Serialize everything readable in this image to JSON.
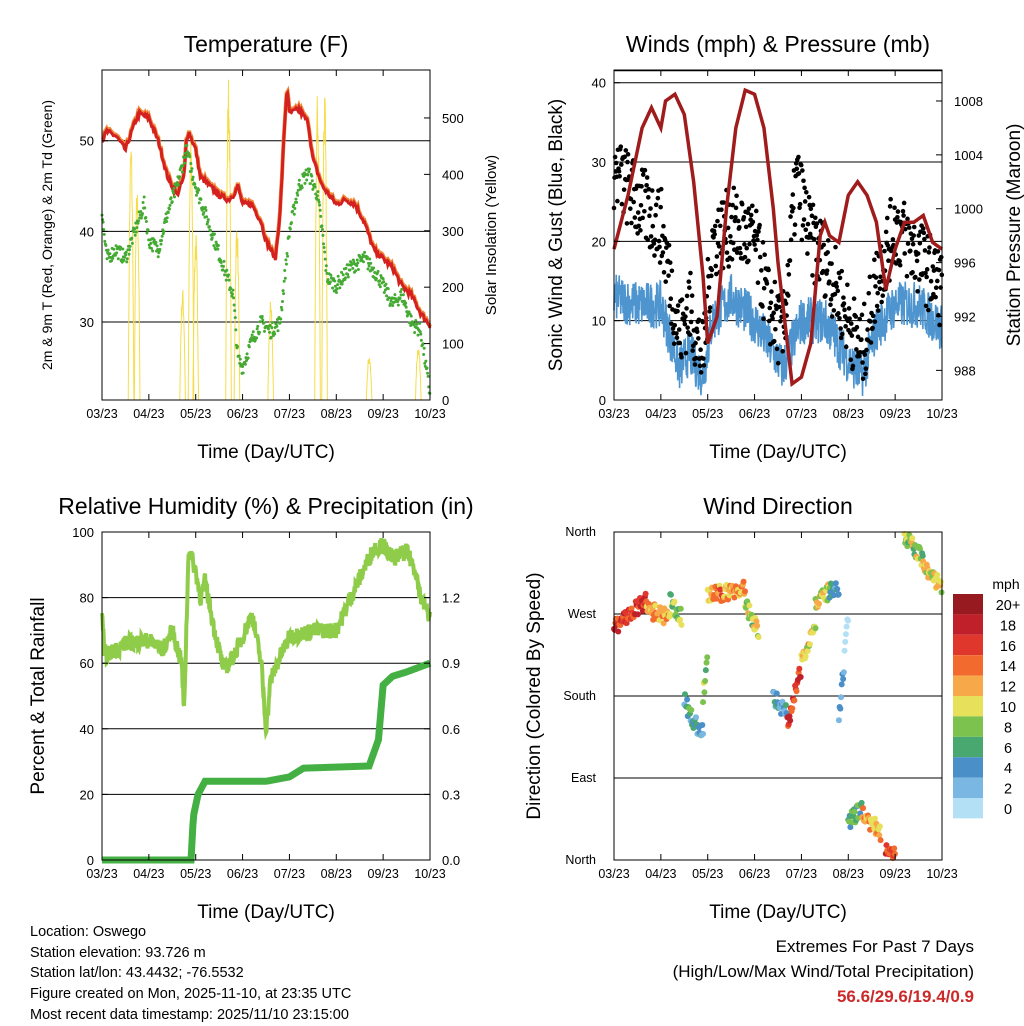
{
  "x_ticks": [
    "03/23",
    "04/23",
    "05/23",
    "06/23",
    "07/23",
    "08/23",
    "09/23",
    "10/23"
  ],
  "chart_data": [
    {
      "type": "line",
      "title": "Temperature (F)",
      "xlabel": "Time (Day/UTC)",
      "ylabel": "2m & 9m T (Red, Orange) & 2m Td (Green)",
      "ylabel_right": "Solar Insolation (Yellow)",
      "ylim": [
        21.4,
        57.8
      ],
      "ylim_right": [
        0,
        585
      ],
      "yticks": [
        30,
        40,
        50
      ],
      "yticks_right": [
        0,
        100,
        200,
        300,
        400,
        500
      ],
      "grid": true,
      "series": [
        {
          "name": "2m T",
          "color": "#d42020",
          "x": [
            0,
            0.1,
            0.3,
            0.5,
            0.7,
            0.8,
            1.0,
            1.2,
            1.4,
            1.6,
            1.75,
            1.8,
            1.85,
            2.0,
            2.1,
            2.3,
            2.5,
            2.7,
            2.8,
            2.9,
            3.0,
            3.2,
            3.4,
            3.5,
            3.6,
            3.7,
            3.8,
            3.9,
            3.95,
            4.0,
            4.2,
            4.4,
            4.5,
            4.7,
            5.0,
            5.2,
            5.4,
            5.6,
            5.8,
            6.0,
            6.2,
            6.4,
            6.6,
            6.8,
            7.0
          ],
          "values": [
            50,
            51,
            50.5,
            49,
            52,
            53,
            52.5,
            50,
            46,
            44,
            46,
            50,
            51,
            49,
            46,
            45,
            44,
            43.5,
            44,
            45,
            43,
            43,
            41,
            39,
            38,
            37,
            42,
            52,
            56,
            53,
            53.5,
            52,
            48,
            45,
            43,
            43.5,
            43,
            41,
            38,
            37,
            36,
            34,
            33,
            31,
            29.6
          ]
        },
        {
          "name": "2m Td",
          "color": "#44aa33",
          "x": [
            0,
            0.1,
            0.3,
            0.5,
            0.7,
            0.9,
            1.0,
            1.2,
            1.4,
            1.6,
            1.8,
            1.9,
            2.0,
            2.2,
            2.4,
            2.6,
            2.8,
            2.9,
            3.0,
            3.2,
            3.4,
            3.6,
            3.8,
            3.9,
            4.0,
            4.2,
            4.4,
            4.6,
            4.7,
            4.8,
            5.0,
            5.3,
            5.6,
            5.9,
            6.2,
            6.4,
            6.6,
            6.8,
            7.0
          ],
          "values": [
            42,
            37,
            38,
            37,
            40,
            43,
            39,
            38,
            42,
            45,
            49,
            47,
            45,
            42,
            39,
            36,
            33,
            26,
            25,
            28,
            30,
            29,
            30,
            35,
            40,
            45,
            46.5,
            44,
            40,
            35,
            34,
            36,
            37,
            35,
            32,
            33,
            30,
            29,
            22
          ]
        },
        {
          "name": "Solar Insolation",
          "color": "#f5dd4a",
          "peaks": [
            [
              0.62,
              470
            ],
            [
              0.75,
              380
            ],
            [
              1.72,
              200
            ],
            [
              1.9,
              470
            ],
            [
              2.0,
              300
            ],
            [
              2.7,
              580
            ],
            [
              2.88,
              320
            ],
            [
              3.6,
              180
            ],
            [
              4.6,
              550
            ],
            [
              4.75,
              560
            ],
            [
              5.7,
              80
            ],
            [
              6.75,
              100
            ]
          ]
        }
      ]
    },
    {
      "type": "scatter",
      "title": "Winds (mph) & Pressure (mb)",
      "xlabel": "Time (Day/UTC)",
      "ylabel": "Sonic Wind & Gust (Blue, Black)",
      "ylabel_right": "Station Pressure (Maroon)",
      "ylim": [
        0,
        41.6
      ],
      "ylim_right": [
        985.8,
        1010.3
      ],
      "yticks": [
        0,
        10,
        20,
        30,
        40
      ],
      "yticks_right": [
        988,
        992,
        996,
        1000,
        1004,
        1008
      ],
      "grid": true,
      "series": [
        {
          "name": "Sonic Wind",
          "color": "#4e95d0",
          "x": [
            0,
            0.5,
            1.0,
            1.4,
            1.6,
            1.9,
            2.1,
            2.5,
            3.0,
            3.3,
            3.6,
            4.0,
            4.5,
            5.0,
            5.3,
            5.6,
            6.0,
            6.5,
            7.0
          ],
          "values": [
            13,
            12,
            12,
            4,
            6,
            3,
            10,
            13,
            10,
            7,
            4,
            10,
            10,
            5,
            3,
            9,
            12,
            12,
            9
          ]
        },
        {
          "name": "Gust",
          "color": "#000000",
          "x": [
            0,
            0.5,
            1.0,
            1.4,
            1.6,
            1.9,
            2.1,
            2.5,
            3.0,
            3.3,
            3.6,
            3.9,
            4.2,
            4.5,
            5.0,
            5.3,
            5.6,
            6.0,
            6.5,
            7.0
          ],
          "values": [
            29,
            25,
            22,
            8,
            12,
            5,
            20,
            22,
            20,
            12,
            8,
            28,
            20,
            18,
            10,
            6,
            15,
            22,
            18,
            14
          ]
        },
        {
          "name": "Station Pressure",
          "color": "#a01c1c",
          "x": [
            0,
            0.3,
            0.6,
            0.8,
            1.0,
            1.1,
            1.3,
            1.5,
            1.7,
            1.9,
            2.0,
            2.2,
            2.4,
            2.6,
            2.8,
            3.0,
            3.2,
            3.4,
            3.5,
            3.7,
            3.8,
            4.0,
            4.2,
            4.4,
            4.5,
            4.6,
            4.8,
            5.0,
            5.2,
            5.4,
            5.6,
            5.8,
            6.0,
            6.2,
            6.4,
            6.6,
            6.8,
            7.0
          ],
          "values": [
            997,
            1001,
            1006,
            1007.5,
            1006,
            1008,
            1008.5,
            1007,
            1002,
            995,
            990,
            992,
            1000,
            1006,
            1008.8,
            1008.5,
            1006,
            1000,
            996,
            990,
            987,
            987.5,
            990,
            998,
            999,
            998,
            997.5,
            1001,
            1002,
            1001,
            999,
            994,
            997,
            999,
            999,
            999.5,
            997.5,
            997
          ]
        }
      ]
    },
    {
      "type": "line",
      "title": "Relative Humidity (%) & Precipitation (in)",
      "xlabel": "Time (Day/UTC)",
      "ylabel": "Percent & Total Rainfall",
      "ylim": [
        0,
        100
      ],
      "ylim_right": [
        0,
        1.5
      ],
      "yticks": [
        0,
        20,
        40,
        60,
        80,
        100
      ],
      "yticks_right": [
        "0.0",
        "0.3",
        "0.6",
        "0.9",
        "1.2"
      ],
      "grid": true,
      "series": [
        {
          "name": "Relative Humidity",
          "color": "#8fcc4a",
          "x": [
            0,
            0.05,
            0.5,
            1.0,
            1.3,
            1.5,
            1.7,
            1.75,
            1.85,
            2.0,
            2.1,
            2.2,
            2.4,
            2.6,
            2.8,
            3.0,
            3.2,
            3.4,
            3.5,
            3.6,
            3.8,
            4.0,
            4.5,
            5.0,
            5.5,
            5.8,
            6.0,
            6.2,
            6.5,
            6.7,
            6.8,
            7.0
          ],
          "values": [
            77,
            62,
            66,
            67,
            64,
            70,
            60,
            45,
            95,
            88,
            80,
            85,
            70,
            58,
            62,
            68,
            75,
            60,
            40,
            55,
            62,
            68,
            70,
            70,
            86,
            95,
            96,
            92,
            94,
            88,
            80,
            74
          ]
        },
        {
          "name": "Total Precipitation",
          "color": "#44b044",
          "x": [
            0,
            1.9,
            1.95,
            2.05,
            2.2,
            3.5,
            4.0,
            4.3,
            5.7,
            5.9,
            6.0,
            6.2,
            6.5,
            7.0
          ],
          "values": [
            0,
            0,
            0.2,
            0.3,
            0.36,
            0.36,
            0.38,
            0.42,
            0.43,
            0.55,
            0.8,
            0.84,
            0.86,
            0.9
          ]
        }
      ]
    },
    {
      "type": "scatter",
      "title": "Wind Direction",
      "xlabel": "Time (Day/UTC)",
      "ylabel": "Direction (Colored By Speed)",
      "ylim": [
        0,
        360
      ],
      "yticks": [
        "North",
        "East",
        "South",
        "West",
        "North"
      ],
      "legend": {
        "title": "mph",
        "labels": [
          "20+",
          "18",
          "16",
          "14",
          "12",
          "10",
          "8",
          "6",
          "4",
          "2",
          "0"
        ],
        "colors": [
          "#961a1f",
          "#c0202a",
          "#e0372d",
          "#f26a2d",
          "#f7a94a",
          "#e7e05a",
          "#7cc24f",
          "#49a86f",
          "#4a8fc7",
          "#7ab8e3",
          "#b3e0f5"
        ],
        "placement": "right"
      },
      "segments": [
        [
          0,
          0.7,
          255,
          285,
          16
        ],
        [
          0.7,
          1.2,
          275,
          265,
          12
        ],
        [
          1.2,
          1.45,
          285,
          265,
          8
        ],
        [
          1.5,
          1.72,
          175,
          150,
          5
        ],
        [
          1.72,
          1.9,
          150,
          140,
          4
        ],
        [
          1.9,
          2.0,
          180,
          220,
          8
        ],
        [
          2.0,
          2.8,
          290,
          298,
          13
        ],
        [
          2.8,
          3.1,
          280,
          250,
          9
        ],
        [
          3.4,
          3.7,
          180,
          160,
          4
        ],
        [
          3.7,
          4.0,
          150,
          210,
          15
        ],
        [
          4.0,
          4.3,
          220,
          260,
          11
        ],
        [
          4.3,
          4.6,
          280,
          295,
          10
        ],
        [
          4.6,
          4.8,
          295,
          295,
          4
        ],
        [
          4.8,
          5.0,
          150,
          270,
          2
        ],
        [
          5.0,
          5.3,
          40,
          60,
          7
        ],
        [
          5.3,
          5.7,
          50,
          30,
          12
        ],
        [
          5.8,
          6.0,
          15,
          8,
          16
        ],
        [
          6.2,
          6.6,
          355,
          330,
          9
        ],
        [
          6.6,
          7.0,
          320,
          300,
          10
        ]
      ]
    }
  ],
  "info": {
    "location": "Location: Oswego",
    "elevation": "Station elevation: 93.726 m",
    "latlon": "Station lat/lon: 43.4432; -76.5532",
    "created": "Figure created on Mon, 2025-11-10, at 23:35 UTC",
    "recent": "Most recent data timestamp: 2025/11/10 23:15:00"
  },
  "extremes": {
    "title": "Extremes For Past 7 Days",
    "subtitle": "(High/Low/Max Wind/Total Precipitation)",
    "values": "56.6/29.6/19.4/0.9"
  }
}
